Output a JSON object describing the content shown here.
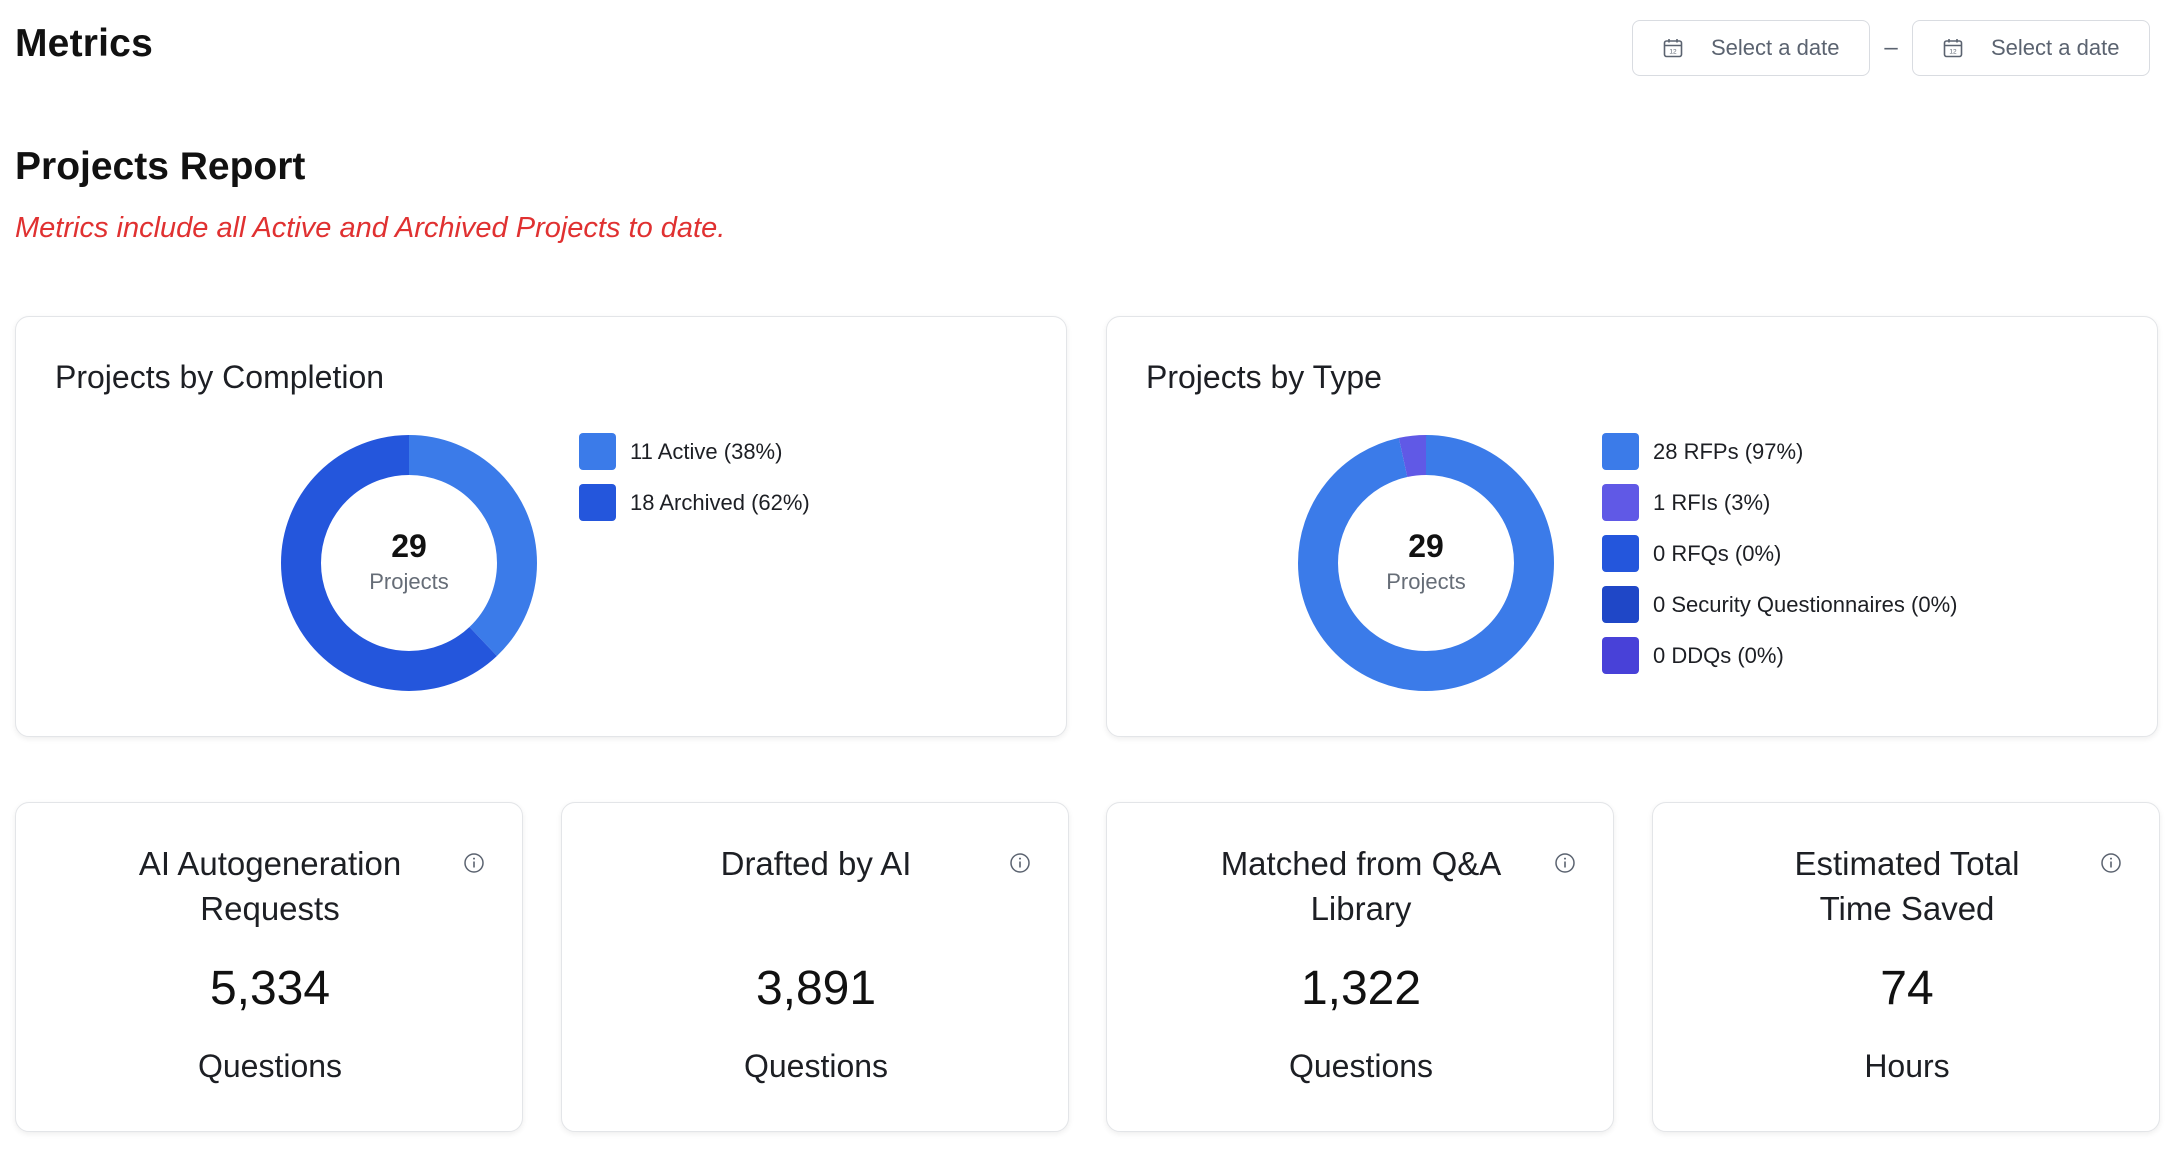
{
  "header": {
    "title": "Metrics",
    "date_start": {
      "label": "Select a date",
      "icon": "calendar-icon"
    },
    "separator": "–",
    "date_end": {
      "label": "Select a date",
      "icon": "calendar-icon"
    }
  },
  "report": {
    "title": "Projects Report",
    "note": "Metrics include all Active and Archived Projects to date.",
    "note_color": "#e03131"
  },
  "completion": {
    "title": "Projects by Completion",
    "total": "29",
    "unit": "Projects",
    "legend": [
      {
        "label": "11 Active (38%)",
        "color": "#3b7be9"
      },
      {
        "label": "18 Archived (62%)",
        "color": "#2456dc"
      }
    ]
  },
  "by_type": {
    "title": "Projects by Type",
    "total": "29",
    "unit": "Projects",
    "legend": [
      {
        "label": "28 RFPs (97%)",
        "color": "#3b7be9"
      },
      {
        "label": "1 RFIs (3%)",
        "color": "#6059e6"
      },
      {
        "label": "0 RFQs (0%)",
        "color": "#2456dc"
      },
      {
        "label": "0 Security Questionnaires (0%)",
        "color": "#1f47c7"
      },
      {
        "label": "0 DDQs (0%)",
        "color": "#4841d8"
      }
    ]
  },
  "chart_data": [
    {
      "type": "pie",
      "title": "Projects by Completion",
      "categories": [
        "Active",
        "Archived"
      ],
      "values": [
        11,
        18
      ],
      "percent": [
        38,
        62
      ],
      "colors": [
        "#3b7be9",
        "#2456dc"
      ]
    },
    {
      "type": "pie",
      "title": "Projects by Type",
      "categories": [
        "RFPs",
        "RFIs",
        "RFQs",
        "Security Questionnaires",
        "DDQs"
      ],
      "values": [
        28,
        1,
        0,
        0,
        0
      ],
      "percent": [
        97,
        3,
        0,
        0,
        0
      ],
      "colors": [
        "#3b7be9",
        "#6059e6",
        "#2456dc",
        "#1f47c7",
        "#4841d8"
      ]
    }
  ],
  "stats": [
    {
      "title": "AI Autogeneration Requests",
      "value": "5,334",
      "unit": "Questions"
    },
    {
      "title": "Drafted by AI",
      "value": "3,891",
      "unit": "Questions"
    },
    {
      "title": "Matched from Q&A Library",
      "value": "1,322",
      "unit": "Questions"
    },
    {
      "title": "Estimated Total Time Saved",
      "value": "74",
      "unit": "Hours"
    }
  ]
}
